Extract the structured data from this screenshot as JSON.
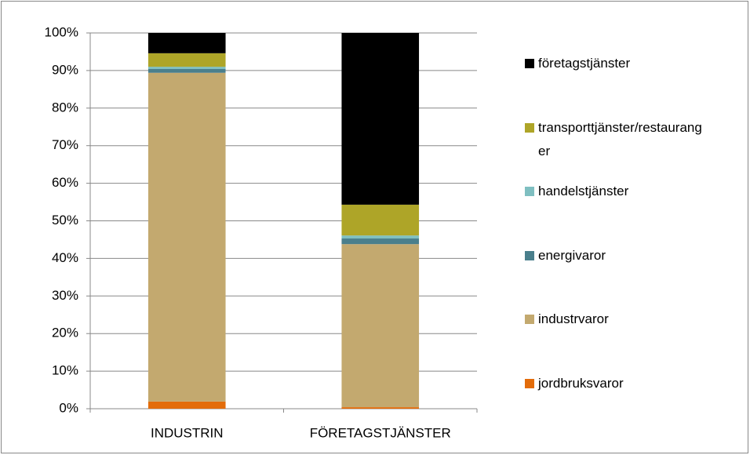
{
  "chart_data": {
    "type": "stacked_bar",
    "categories": [
      "INDUSTRIN",
      "FÖRETAGSTJÄNSTER"
    ],
    "series": [
      {
        "name": "jordbruksvaror",
        "color": "#e36c0a",
        "values": [
          1.9,
          0.4
        ]
      },
      {
        "name": "industrvaror",
        "color": "#c3a96f",
        "values": [
          87.5,
          43.4
        ]
      },
      {
        "name": "energivaror",
        "color": "#4a7f8c",
        "values": [
          1.0,
          1.5
        ]
      },
      {
        "name": "handelstjänster",
        "color": "#7fbfc1",
        "values": [
          0.6,
          0.8
        ]
      },
      {
        "name": "transporttjänster/restauranger",
        "color": "#aea528",
        "values": [
          3.6,
          8.2
        ]
      },
      {
        "name": "företagstjänster",
        "color": "#000000",
        "values": [
          5.4,
          45.7
        ]
      }
    ],
    "ylim": [
      0,
      100
    ],
    "yticks": [
      {
        "value": 0,
        "label": "0%"
      },
      {
        "value": 10,
        "label": "10%"
      },
      {
        "value": 20,
        "label": "20%"
      },
      {
        "value": 30,
        "label": "30%"
      },
      {
        "value": 40,
        "label": "40%"
      },
      {
        "value": 50,
        "label": "50%"
      },
      {
        "value": 60,
        "label": "60%"
      },
      {
        "value": 70,
        "label": "70%"
      },
      {
        "value": 80,
        "label": "80%"
      },
      {
        "value": 90,
        "label": "90%"
      },
      {
        "value": 100,
        "label": "100%"
      }
    ],
    "grid": true,
    "legend": "right"
  }
}
